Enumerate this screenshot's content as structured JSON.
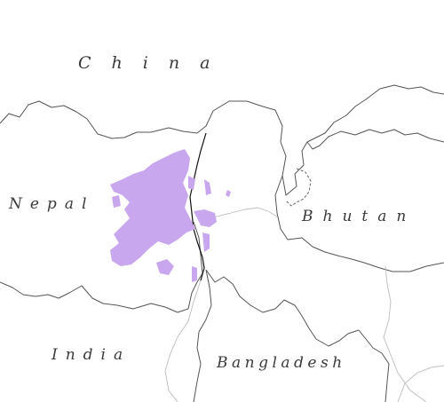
{
  "labels": {
    "china": "China",
    "nepal": "Nepal",
    "bhutan": "Bhutan",
    "india": "India",
    "bangladesh": "Bangladesh"
  },
  "colors": {
    "range": "#c9a7ee",
    "border": "#555555"
  },
  "icons": {
    "range_shape": "distribution-area"
  }
}
